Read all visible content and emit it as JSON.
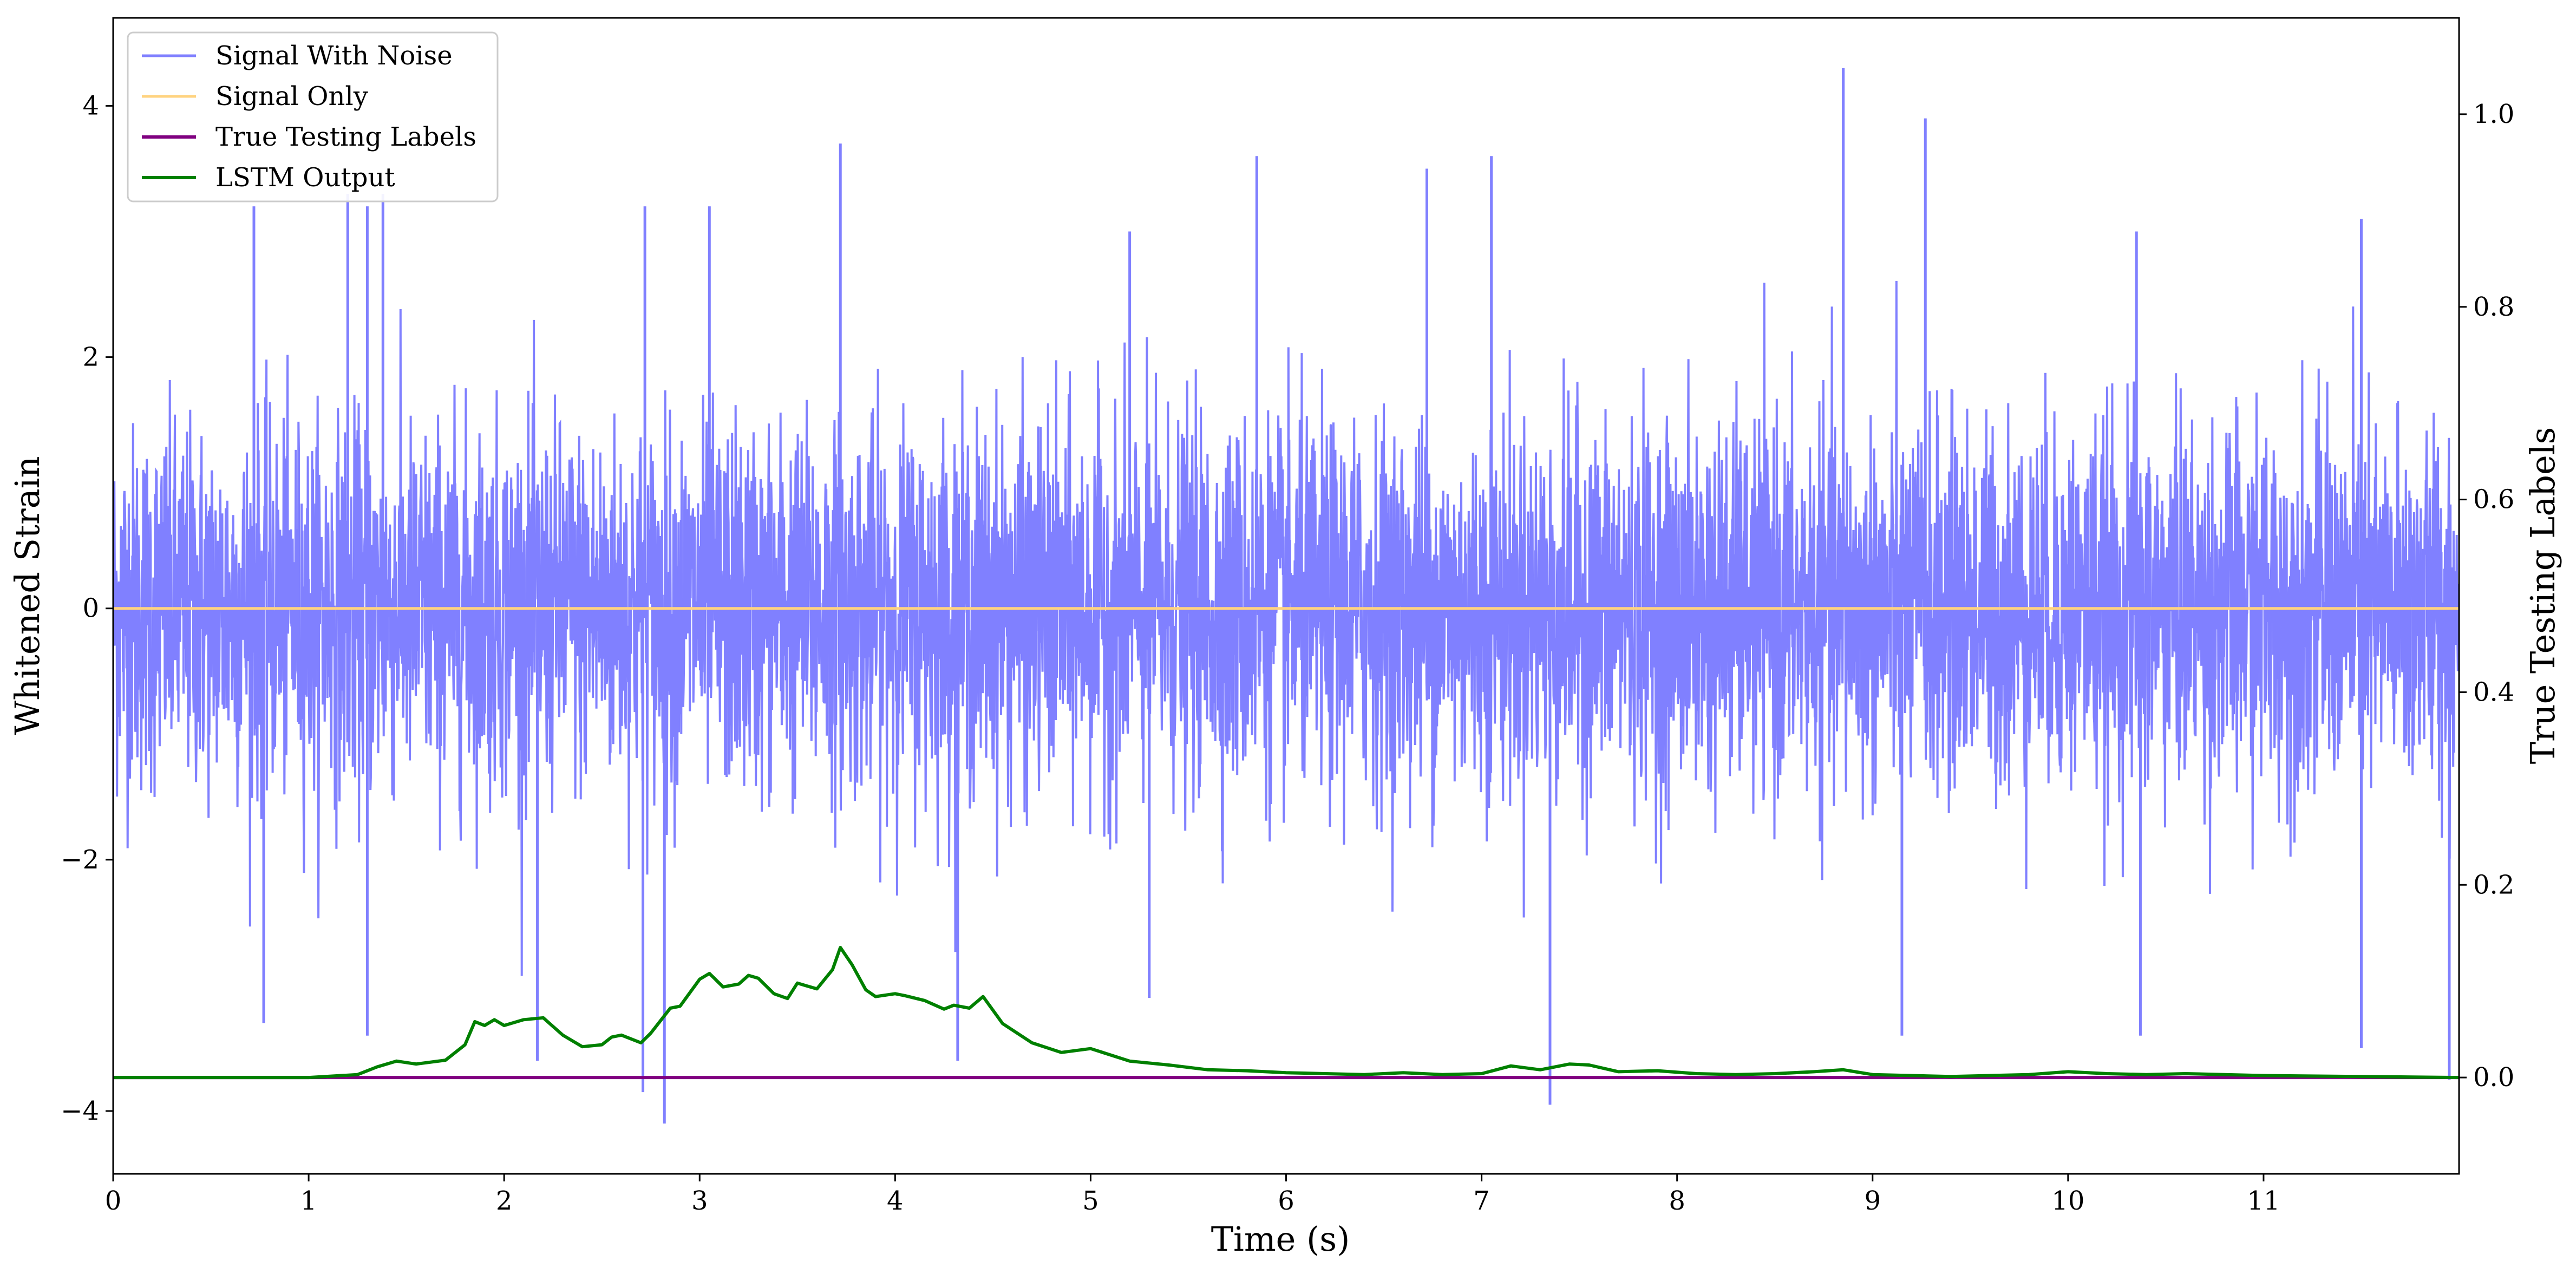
{
  "chart_data": {
    "type": "line",
    "xlabel": "Time (s)",
    "ylabel": "Whitened Strain",
    "ylabel_right": "True Testing Labels",
    "xlim": [
      0,
      12
    ],
    "ylim": [
      -4.5,
      4.7
    ],
    "ylim_right": [
      -0.1,
      1.1
    ],
    "xticks": [
      0,
      1,
      2,
      3,
      4,
      5,
      6,
      7,
      8,
      9,
      10,
      11
    ],
    "xtick_labels": [
      "0",
      "1",
      "2",
      "3",
      "4",
      "5",
      "6",
      "7",
      "8",
      "9",
      "10",
      "11"
    ],
    "yticks": [
      -4,
      -2,
      0,
      2,
      4
    ],
    "ytick_labels": [
      "−4",
      "−2",
      "0",
      "2",
      "4"
    ],
    "yticks_right": [
      0.0,
      0.2,
      0.4,
      0.6,
      0.8,
      1.0
    ],
    "ytick_labels_right": [
      "0.0",
      "0.2",
      "0.4",
      "0.6",
      "0.8",
      "1.0"
    ],
    "grid": false,
    "legend_position": "top-left",
    "series": [
      {
        "name": "Signal With Noise",
        "axis": "left",
        "color": "#8080ff",
        "kind": "noise",
        "typical_range": [
          -1.6,
          1.6
        ],
        "peaks": [
          {
            "x": 0.72,
            "y": 3.2
          },
          {
            "x": 1.2,
            "y": 3.3
          },
          {
            "x": 1.3,
            "y": 3.2
          },
          {
            "x": 1.38,
            "y": 3.3
          },
          {
            "x": 2.72,
            "y": 3.2
          },
          {
            "x": 3.05,
            "y": 3.2
          },
          {
            "x": 3.72,
            "y": 3.7
          },
          {
            "x": 5.2,
            "y": 3.0
          },
          {
            "x": 5.85,
            "y": 3.6
          },
          {
            "x": 6.72,
            "y": 3.5
          },
          {
            "x": 7.05,
            "y": 3.6
          },
          {
            "x": 8.85,
            "y": 4.3
          },
          {
            "x": 9.27,
            "y": 3.9
          },
          {
            "x": 10.35,
            "y": 3.0
          },
          {
            "x": 11.5,
            "y": 3.1
          }
        ],
        "troughs": [
          {
            "x": 0.77,
            "y": -3.3
          },
          {
            "x": 1.3,
            "y": -3.4
          },
          {
            "x": 2.17,
            "y": -3.6
          },
          {
            "x": 2.71,
            "y": -3.85
          },
          {
            "x": 2.82,
            "y": -4.1
          },
          {
            "x": 4.32,
            "y": -3.6
          },
          {
            "x": 5.3,
            "y": -3.1
          },
          {
            "x": 7.35,
            "y": -3.95
          },
          {
            "x": 9.15,
            "y": -3.4
          },
          {
            "x": 10.37,
            "y": -3.4
          },
          {
            "x": 11.5,
            "y": -3.5
          },
          {
            "x": 11.95,
            "y": -3.75
          }
        ]
      },
      {
        "name": "Signal Only",
        "axis": "left",
        "color": "#ffd380",
        "x": [
          0,
          12
        ],
        "y": [
          0,
          0
        ]
      },
      {
        "name": "True Testing Labels",
        "axis": "right",
        "color": "#800080",
        "x": [
          0,
          12
        ],
        "y": [
          0,
          0
        ]
      },
      {
        "name": "LSTM Output",
        "axis": "right",
        "color": "#008000",
        "x": [
          0,
          1.0,
          1.25,
          1.35,
          1.45,
          1.55,
          1.7,
          1.8,
          1.85,
          1.9,
          1.95,
          2.0,
          2.1,
          2.2,
          2.3,
          2.4,
          2.5,
          2.55,
          2.6,
          2.7,
          2.75,
          2.85,
          2.9,
          3.0,
          3.05,
          3.12,
          3.2,
          3.25,
          3.3,
          3.38,
          3.45,
          3.5,
          3.55,
          3.6,
          3.68,
          3.72,
          3.78,
          3.85,
          3.9,
          4.0,
          4.05,
          4.15,
          4.25,
          4.3,
          4.38,
          4.45,
          4.55,
          4.7,
          4.85,
          5.0,
          5.2,
          5.4,
          5.6,
          5.8,
          6.0,
          6.2,
          6.4,
          6.6,
          6.8,
          7.0,
          7.15,
          7.3,
          7.45,
          7.55,
          7.7,
          7.9,
          8.1,
          8.3,
          8.5,
          8.7,
          8.85,
          9.0,
          9.2,
          9.4,
          9.6,
          9.8,
          10.0,
          10.2,
          10.4,
          10.6,
          10.8,
          11.0,
          11.5,
          12.0
        ],
        "y": [
          0.0,
          0.0,
          0.003,
          0.011,
          0.017,
          0.014,
          0.018,
          0.034,
          0.058,
          0.054,
          0.06,
          0.054,
          0.06,
          0.062,
          0.044,
          0.032,
          0.034,
          0.042,
          0.044,
          0.036,
          0.046,
          0.072,
          0.074,
          0.102,
          0.108,
          0.094,
          0.097,
          0.106,
          0.103,
          0.087,
          0.082,
          0.098,
          0.095,
          0.092,
          0.112,
          0.135,
          0.117,
          0.091,
          0.084,
          0.087,
          0.085,
          0.08,
          0.071,
          0.075,
          0.072,
          0.084,
          0.056,
          0.036,
          0.026,
          0.03,
          0.017,
          0.013,
          0.008,
          0.007,
          0.005,
          0.004,
          0.003,
          0.005,
          0.003,
          0.004,
          0.012,
          0.008,
          0.014,
          0.013,
          0.006,
          0.007,
          0.004,
          0.003,
          0.004,
          0.006,
          0.008,
          0.003,
          0.002,
          0.001,
          0.002,
          0.003,
          0.006,
          0.004,
          0.003,
          0.004,
          0.003,
          0.002,
          0.001,
          0.0
        ]
      }
    ]
  }
}
